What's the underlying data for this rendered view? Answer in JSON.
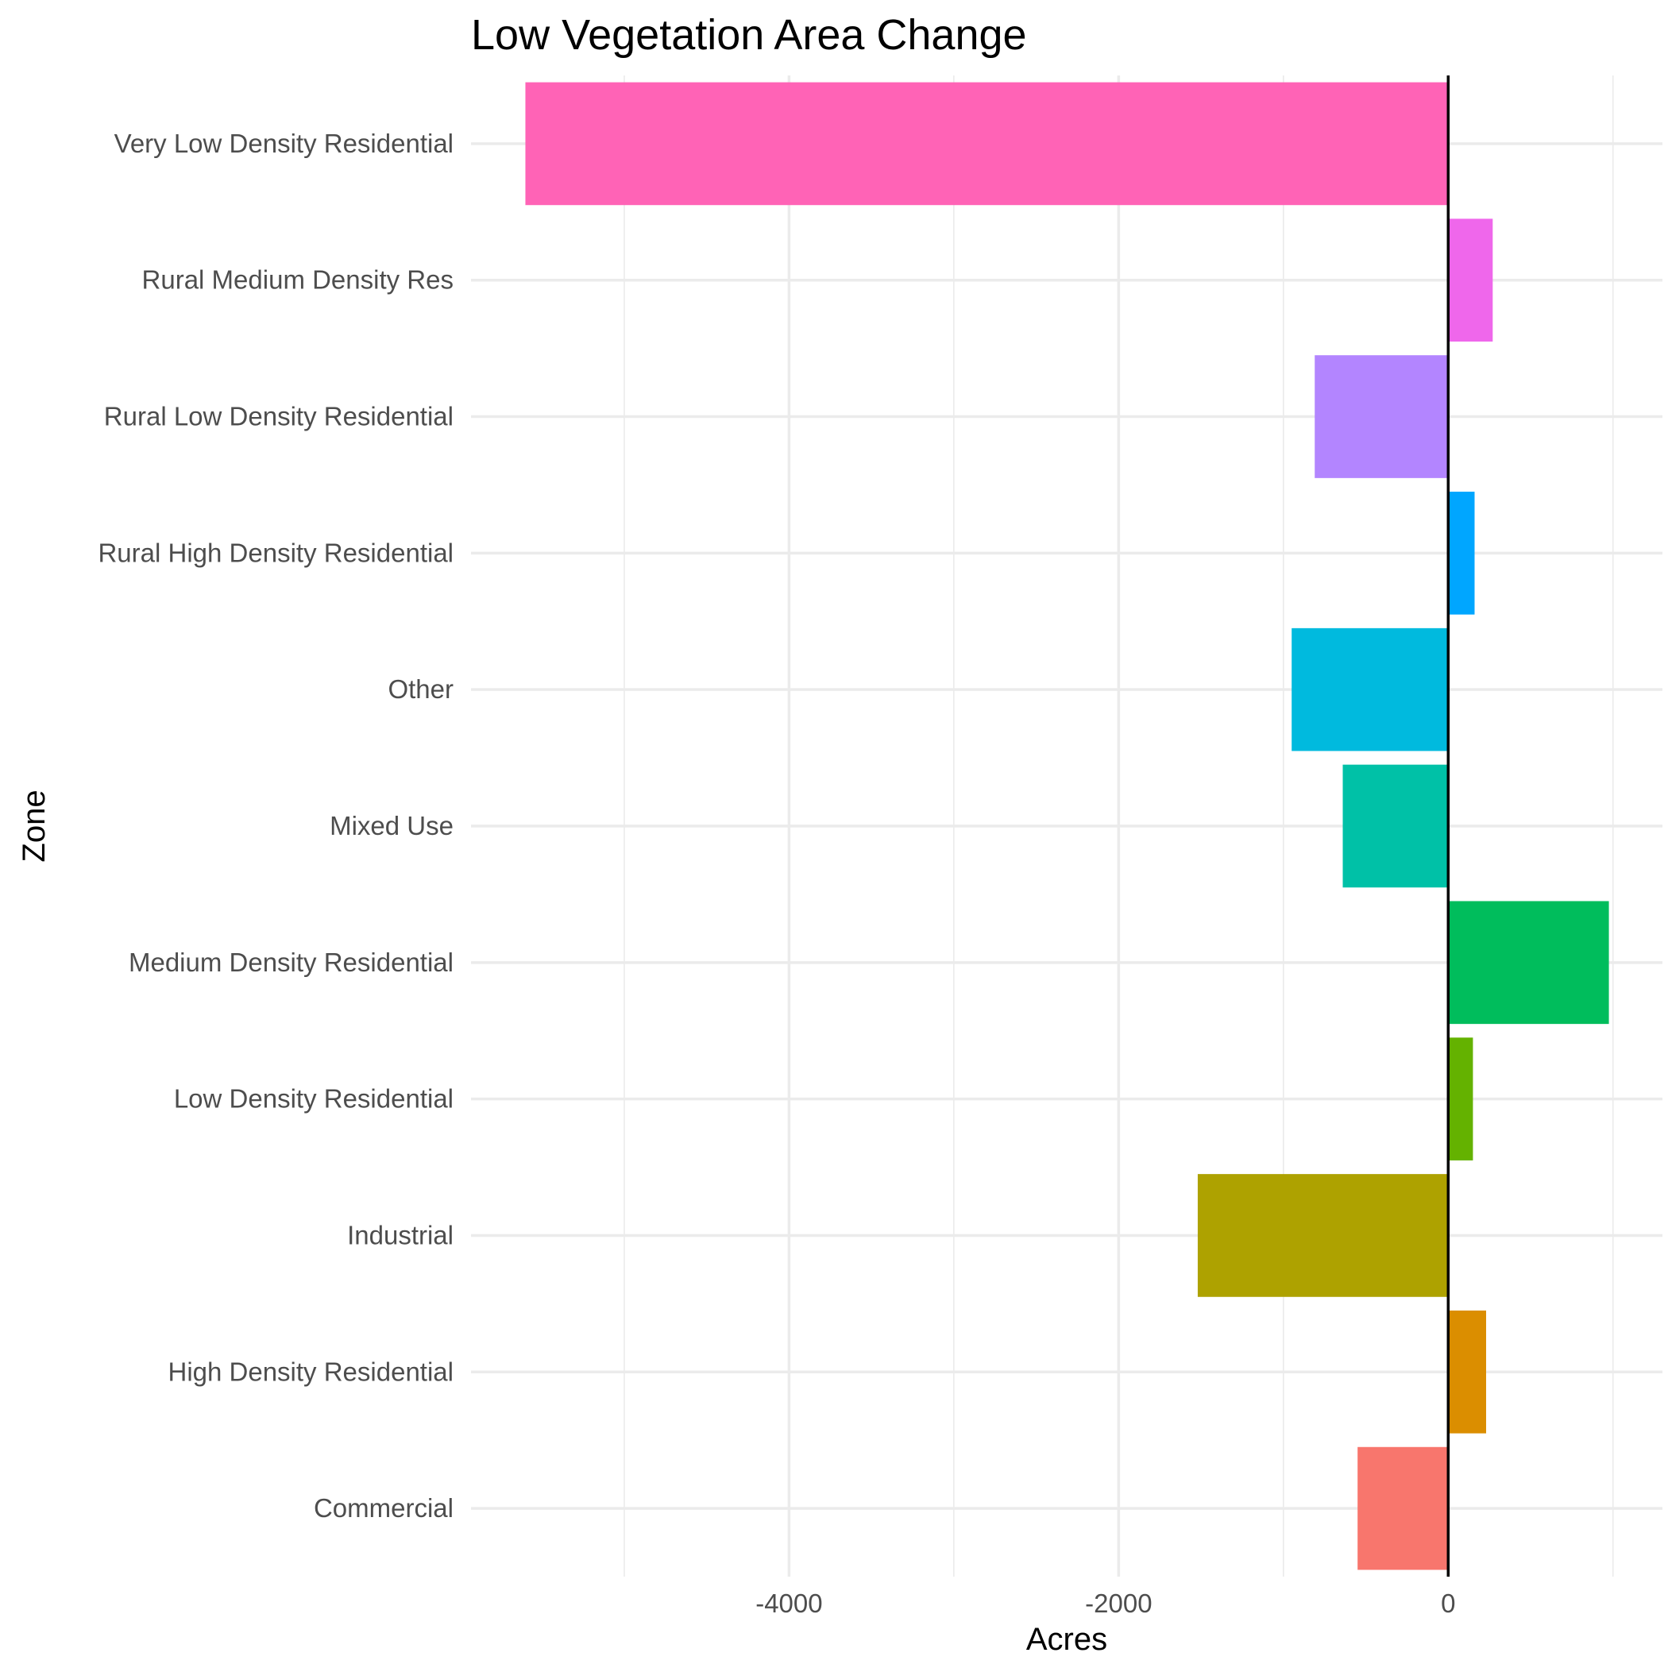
{
  "chart_data": {
    "type": "bar",
    "orientation": "horizontal",
    "title": "Low Vegetation Area Change",
    "xlabel": "Acres",
    "ylabel": "Zone",
    "categories": [
      "Commercial",
      "High Density Residential",
      "Industrial",
      "Low Density Residential",
      "Medium Density Residential",
      "Mixed Use",
      "Other",
      "Rural High Density Residential",
      "Rural Low Density Residential",
      "Rural Medium Density Res",
      "Very Low Density Residential"
    ],
    "values": [
      -550,
      230,
      -1520,
      150,
      975,
      -640,
      -950,
      160,
      -810,
      270,
      -5600
    ],
    "colors": [
      "#F8766D",
      "#DB8E00",
      "#AEA200",
      "#64B200",
      "#00BD5C",
      "#00C1A7",
      "#00BADE",
      "#00A6FF",
      "#B385FF",
      "#EF67EB",
      "#FF63B6"
    ],
    "x_ticks": [
      -4000,
      -2000,
      0
    ],
    "x_tick_labels": [
      "-4000",
      "-2000",
      "0"
    ],
    "x_minor_ticks": [
      -5000,
      -3000,
      -1000,
      1000
    ],
    "xlim": [
      -5930,
      1300
    ],
    "grid": true,
    "reference_line": 0,
    "legend": "none"
  }
}
